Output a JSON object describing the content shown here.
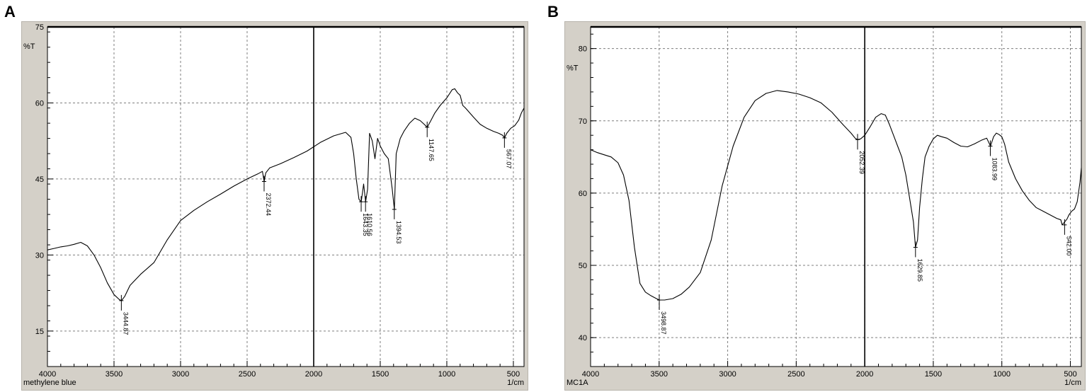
{
  "panels": [
    {
      "letter": "A"
    },
    {
      "letter": "B"
    }
  ],
  "chart_data": [
    {
      "type": "line",
      "title": "",
      "sample_label": "methylene blue",
      "ylabel": "%T",
      "xlabel": "1/cm",
      "x_reversed": true,
      "xlim": [
        4000,
        420
      ],
      "ylim": [
        8,
        75
      ],
      "x_ticks": [
        4000,
        3500,
        3000,
        2500,
        2000,
        1500,
        1000,
        500
      ],
      "y_ticks": [
        15,
        30,
        45,
        60,
        75
      ],
      "grid": true,
      "marker_line_x": 2000,
      "series": [
        {
          "x": [
            4000,
            3950,
            3900,
            3850,
            3800,
            3750,
            3700,
            3650,
            3600,
            3550,
            3500,
            3460,
            3444,
            3420,
            3380,
            3300,
            3200,
            3100,
            3000,
            2900,
            2800,
            2700,
            2600,
            2500,
            2420,
            2385,
            2372,
            2360,
            2330,
            2250,
            2150,
            2050,
            1950,
            1850,
            1760,
            1720,
            1700,
            1680,
            1660,
            1643,
            1625,
            1610,
            1595,
            1580,
            1560,
            1540,
            1520,
            1500,
            1470,
            1440,
            1410,
            1394,
            1380,
            1350,
            1320,
            1280,
            1240,
            1200,
            1170,
            1147,
            1120,
            1090,
            1050,
            1000,
            960,
            940,
            920,
            900,
            880,
            860,
            800,
            750,
            700,
            650,
            610,
            580,
            567,
            550,
            520,
            490,
            460,
            440,
            420
          ],
          "y": [
            31,
            31.3,
            31.6,
            31.8,
            32.1,
            32.5,
            31.8,
            30,
            27.5,
            24.5,
            22.2,
            21.2,
            21,
            21.8,
            24,
            26.2,
            28.5,
            33,
            36.8,
            38.8,
            40.5,
            42,
            43.6,
            45,
            46,
            46.5,
            44.5,
            46.2,
            47.2,
            48,
            49.2,
            50.5,
            52.2,
            53.5,
            54.2,
            53.2,
            50,
            45,
            41,
            40.5,
            44,
            40.5,
            43,
            54,
            52.5,
            49,
            53,
            51.5,
            50,
            49,
            43,
            39,
            50,
            53,
            54.5,
            56,
            57,
            56.5,
            55.8,
            55.2,
            56.5,
            58,
            59.5,
            61,
            62.6,
            62.8,
            62,
            61.5,
            59.5,
            59,
            57.2,
            55.8,
            55,
            54.4,
            54,
            53.6,
            53.1,
            54,
            55,
            55.5,
            56.6,
            58,
            59
          ]
        }
      ],
      "peaks": [
        {
          "x": 3444.87,
          "y": 21,
          "label": "3444.87"
        },
        {
          "x": 2372.44,
          "y": 44.5,
          "label": "2372.44"
        },
        {
          "x": 1643.35,
          "y": 40.5,
          "label": "1643.35"
        },
        {
          "x": 1610.56,
          "y": 40.5,
          "label": "1610.56"
        },
        {
          "x": 1394.53,
          "y": 39,
          "label": "1394.53"
        },
        {
          "x": 1147.65,
          "y": 55.2,
          "label": "1147.65"
        },
        {
          "x": 567.07,
          "y": 53.1,
          "label": "567.07"
        }
      ]
    },
    {
      "type": "line",
      "title": "",
      "sample_label": "MC1A",
      "ylabel": "%T",
      "xlabel": "1/cm",
      "x_reversed": true,
      "xlim": [
        4000,
        420
      ],
      "ylim": [
        36,
        83
      ],
      "x_ticks": [
        4000,
        3500,
        3000,
        2500,
        2000,
        1500,
        1000,
        500
      ],
      "y_ticks": [
        40,
        50,
        60,
        70,
        80
      ],
      "grid": true,
      "marker_line_x": 2000,
      "series": [
        {
          "x": [
            4000,
            3950,
            3900,
            3850,
            3800,
            3760,
            3720,
            3680,
            3640,
            3600,
            3560,
            3520,
            3498,
            3460,
            3400,
            3340,
            3280,
            3200,
            3120,
            3040,
            2960,
            2880,
            2800,
            2720,
            2640,
            2560,
            2480,
            2400,
            2320,
            2240,
            2160,
            2100,
            2070,
            2052,
            2030,
            2000,
            1960,
            1920,
            1880,
            1850,
            1820,
            1790,
            1760,
            1730,
            1700,
            1670,
            1645,
            1630,
            1615,
            1600,
            1580,
            1560,
            1530,
            1500,
            1470,
            1440,
            1400,
            1350,
            1300,
            1250,
            1200,
            1150,
            1110,
            1083,
            1060,
            1040,
            1020,
            1000,
            980,
            950,
            900,
            850,
            800,
            750,
            700,
            650,
            600,
            570,
            560,
            542,
            525,
            510,
            490,
            470,
            450,
            430,
            420
          ],
          "y": [
            66,
            65.6,
            65.3,
            65,
            64.2,
            62.5,
            59,
            52.5,
            47.5,
            46.3,
            45.8,
            45.4,
            45.2,
            45.2,
            45.4,
            46,
            47,
            49,
            53.5,
            61,
            66.5,
            70.5,
            72.8,
            73.8,
            74.2,
            74,
            73.7,
            73.2,
            72.5,
            71.2,
            69.5,
            68.3,
            67.6,
            67.4,
            67.5,
            68,
            69.2,
            70.5,
            71,
            70.8,
            69.5,
            68,
            66.5,
            65,
            62.5,
            59,
            56,
            52.5,
            53.5,
            58,
            62,
            65,
            66.5,
            67.5,
            68,
            67.8,
            67.6,
            67,
            66.5,
            66.4,
            66.8,
            67.3,
            67.6,
            66.5,
            67.8,
            68.3,
            68.1,
            67.8,
            66.8,
            64.3,
            62,
            60.3,
            59,
            58,
            57.5,
            57,
            56.5,
            56.3,
            55.6,
            56,
            56.4,
            57,
            57.5,
            57.8,
            58.8,
            61.5,
            63.5
          ]
        }
      ],
      "peaks": [
        {
          "x": 3498.87,
          "y": 45.2,
          "label": "3498.87"
        },
        {
          "x": 2052.39,
          "y": 67.4,
          "label": "2052.39"
        },
        {
          "x": 1629.85,
          "y": 52.5,
          "label": "1629.85"
        },
        {
          "x": 1083.99,
          "y": 66.5,
          "label": "1083.99"
        },
        {
          "x": 542.0,
          "y": 55.6,
          "label": "542.00"
        }
      ]
    }
  ],
  "colors": {
    "frame": "#d4d0c8",
    "plot_bg": "#ffffff",
    "grid": "#7f7f7f",
    "curve": "#000000"
  }
}
